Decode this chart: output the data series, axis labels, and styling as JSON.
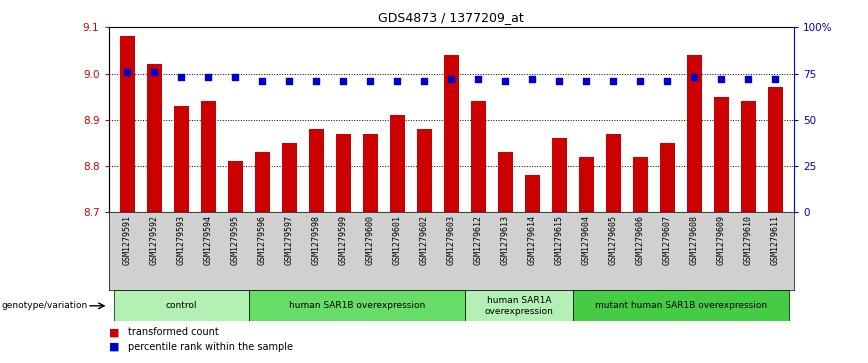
{
  "title": "GDS4873 / 1377209_at",
  "samples": [
    "GSM1279591",
    "GSM1279592",
    "GSM1279593",
    "GSM1279594",
    "GSM1279595",
    "GSM1279596",
    "GSM1279597",
    "GSM1279598",
    "GSM1279599",
    "GSM1279600",
    "GSM1279601",
    "GSM1279602",
    "GSM1279603",
    "GSM1279612",
    "GSM1279613",
    "GSM1279614",
    "GSM1279615",
    "GSM1279604",
    "GSM1279605",
    "GSM1279606",
    "GSM1279607",
    "GSM1279608",
    "GSM1279609",
    "GSM1279610",
    "GSM1279611"
  ],
  "bar_values": [
    9.08,
    9.02,
    8.93,
    8.94,
    8.81,
    8.83,
    8.85,
    8.88,
    8.87,
    8.87,
    8.91,
    8.88,
    9.04,
    8.94,
    8.83,
    8.78,
    8.86,
    8.82,
    8.87,
    8.82,
    8.85,
    9.04,
    8.95,
    8.94,
    8.97
  ],
  "percentile_values": [
    76,
    76,
    73,
    73,
    73,
    71,
    71,
    71,
    71,
    71,
    71,
    71,
    72,
    72,
    71,
    72,
    71,
    71,
    71,
    71,
    71,
    73,
    72,
    72,
    72
  ],
  "bar_color": "#cc0000",
  "dot_color": "#0000cc",
  "ylim_left": [
    8.7,
    9.1
  ],
  "ylim_right": [
    0,
    100
  ],
  "yticks_left": [
    8.7,
    8.8,
    8.9,
    9.0,
    9.1
  ],
  "yticks_right": [
    0,
    25,
    50,
    75,
    100
  ],
  "ytick_labels_right": [
    "0",
    "25",
    "50",
    "75",
    "100%"
  ],
  "groups": [
    {
      "label": "control",
      "start": 0,
      "end": 5,
      "color": "#b3f0b3"
    },
    {
      "label": "human SAR1B overexpression",
      "start": 5,
      "end": 13,
      "color": "#66dd66"
    },
    {
      "label": "human SAR1A\noverexpression",
      "start": 13,
      "end": 17,
      "color": "#b3f0b3"
    },
    {
      "label": "mutant human SAR1B overexpression",
      "start": 17,
      "end": 25,
      "color": "#44cc44"
    }
  ],
  "legend_label_bar": "transformed count",
  "legend_label_dot": "percentile rank within the sample",
  "genotype_label": "genotype/variation",
  "bar_color_left": "#cc0000",
  "dot_color_blue": "#0000cc",
  "tick_bg_color": "#d0d0d0",
  "fig_width": 8.68,
  "fig_height": 3.63
}
